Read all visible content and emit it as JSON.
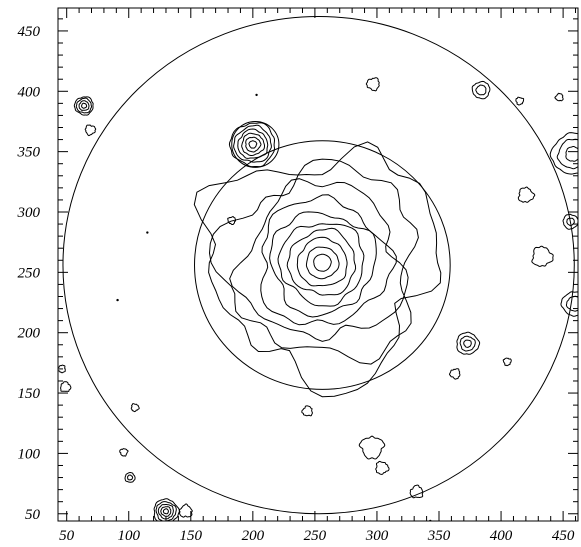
{
  "chart_data": {
    "type": "contour",
    "title": "",
    "xlabel": "",
    "ylabel": "",
    "xlim": [
      43,
      462
    ],
    "ylim": [
      44,
      469
    ],
    "x_ticks": [
      50,
      100,
      150,
      200,
      250,
      300,
      350,
      400,
      450
    ],
    "y_ticks": [
      50,
      100,
      150,
      200,
      250,
      300,
      350,
      400,
      450
    ],
    "grid": false,
    "line_color": "#000000",
    "circles": [
      {
        "name": "outer-aperture",
        "cx": 253,
        "cy": 256,
        "r": 206
      },
      {
        "name": "inner-aperture",
        "cx": 256,
        "cy": 256,
        "r": 103
      },
      {
        "name": "source-aperture",
        "cx": 202,
        "cy": 356,
        "r": 19
      }
    ],
    "main_source": {
      "cx": 256,
      "cy": 258,
      "radii": [
        7,
        13,
        20,
        27,
        34,
        42,
        52,
        64,
        78,
        92
      ],
      "wobble": [
        0.03,
        0.05,
        0.07,
        0.09,
        0.1,
        0.12,
        0.14,
        0.17,
        0.2,
        0.24
      ]
    },
    "compact_sources": [
      {
        "cx": 200,
        "cy": 356,
        "radii": [
          3,
          6,
          9,
          12,
          15,
          18
        ]
      },
      {
        "cx": 64,
        "cy": 388,
        "radii": [
          2,
          4,
          6,
          7.5
        ]
      },
      {
        "cx": 130,
        "cy": 52,
        "radii": [
          2,
          4,
          6,
          8,
          10
        ]
      },
      {
        "cx": 373,
        "cy": 191,
        "radii": [
          3,
          6,
          9
        ]
      },
      {
        "cx": 458,
        "cy": 348,
        "radii": [
          6,
          12,
          17
        ]
      },
      {
        "cx": 384,
        "cy": 401,
        "radii": [
          4,
          7
        ]
      },
      {
        "cx": 456,
        "cy": 292,
        "radii": [
          3,
          6
        ]
      },
      {
        "cx": 101,
        "cy": 80,
        "radii": [
          2,
          4
        ]
      },
      {
        "cx": 459,
        "cy": 224,
        "radii": [
          6,
          10
        ]
      }
    ],
    "blobs": [
      {
        "cx": 296,
        "cy": 105,
        "r": 9
      },
      {
        "cx": 304,
        "cy": 88,
        "r": 5
      },
      {
        "cx": 332,
        "cy": 68,
        "r": 5
      },
      {
        "cx": 297,
        "cy": 406,
        "r": 5
      },
      {
        "cx": 415,
        "cy": 392,
        "r": 3
      },
      {
        "cx": 420,
        "cy": 314,
        "r": 6
      },
      {
        "cx": 447,
        "cy": 395,
        "r": 3
      },
      {
        "cx": 183,
        "cy": 293,
        "r": 3
      },
      {
        "cx": 69,
        "cy": 368,
        "r": 4
      },
      {
        "cx": 49,
        "cy": 155,
        "r": 4
      },
      {
        "cx": 46,
        "cy": 170,
        "r": 3
      },
      {
        "cx": 96,
        "cy": 101,
        "r": 3
      },
      {
        "cx": 105,
        "cy": 138,
        "r": 3
      },
      {
        "cx": 146,
        "cy": 52,
        "r": 5
      },
      {
        "cx": 363,
        "cy": 166,
        "r": 4
      },
      {
        "cx": 405,
        "cy": 176,
        "r": 3
      },
      {
        "cx": 433,
        "cy": 263,
        "r": 8
      },
      {
        "cx": 244,
        "cy": 135,
        "r": 4
      }
    ],
    "points": [
      {
        "x": 203,
        "y": 397
      },
      {
        "x": 115,
        "y": 283
      },
      {
        "x": 91,
        "y": 227
      },
      {
        "x": 343,
        "y": 44
      }
    ]
  }
}
